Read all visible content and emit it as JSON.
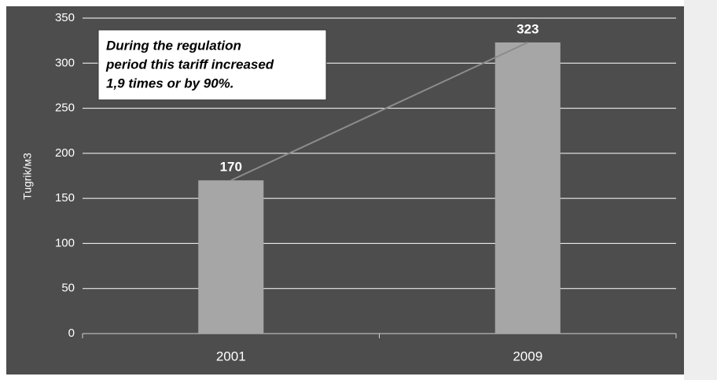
{
  "chart_data": {
    "type": "bar",
    "y_label": "Tugrik/м3",
    "annotation": [
      "During the regulation",
      "period this tariff increased",
      "1,9 times or by 90%."
    ],
    "categories": [
      "2001",
      "2009"
    ],
    "values": [
      170,
      323
    ],
    "color": "#a6a6a6",
    "ylim": [
      0,
      350
    ],
    "yticks": [
      0,
      50,
      100,
      150,
      200,
      250,
      300,
      350
    ],
    "grid": true,
    "trend_line": true
  }
}
